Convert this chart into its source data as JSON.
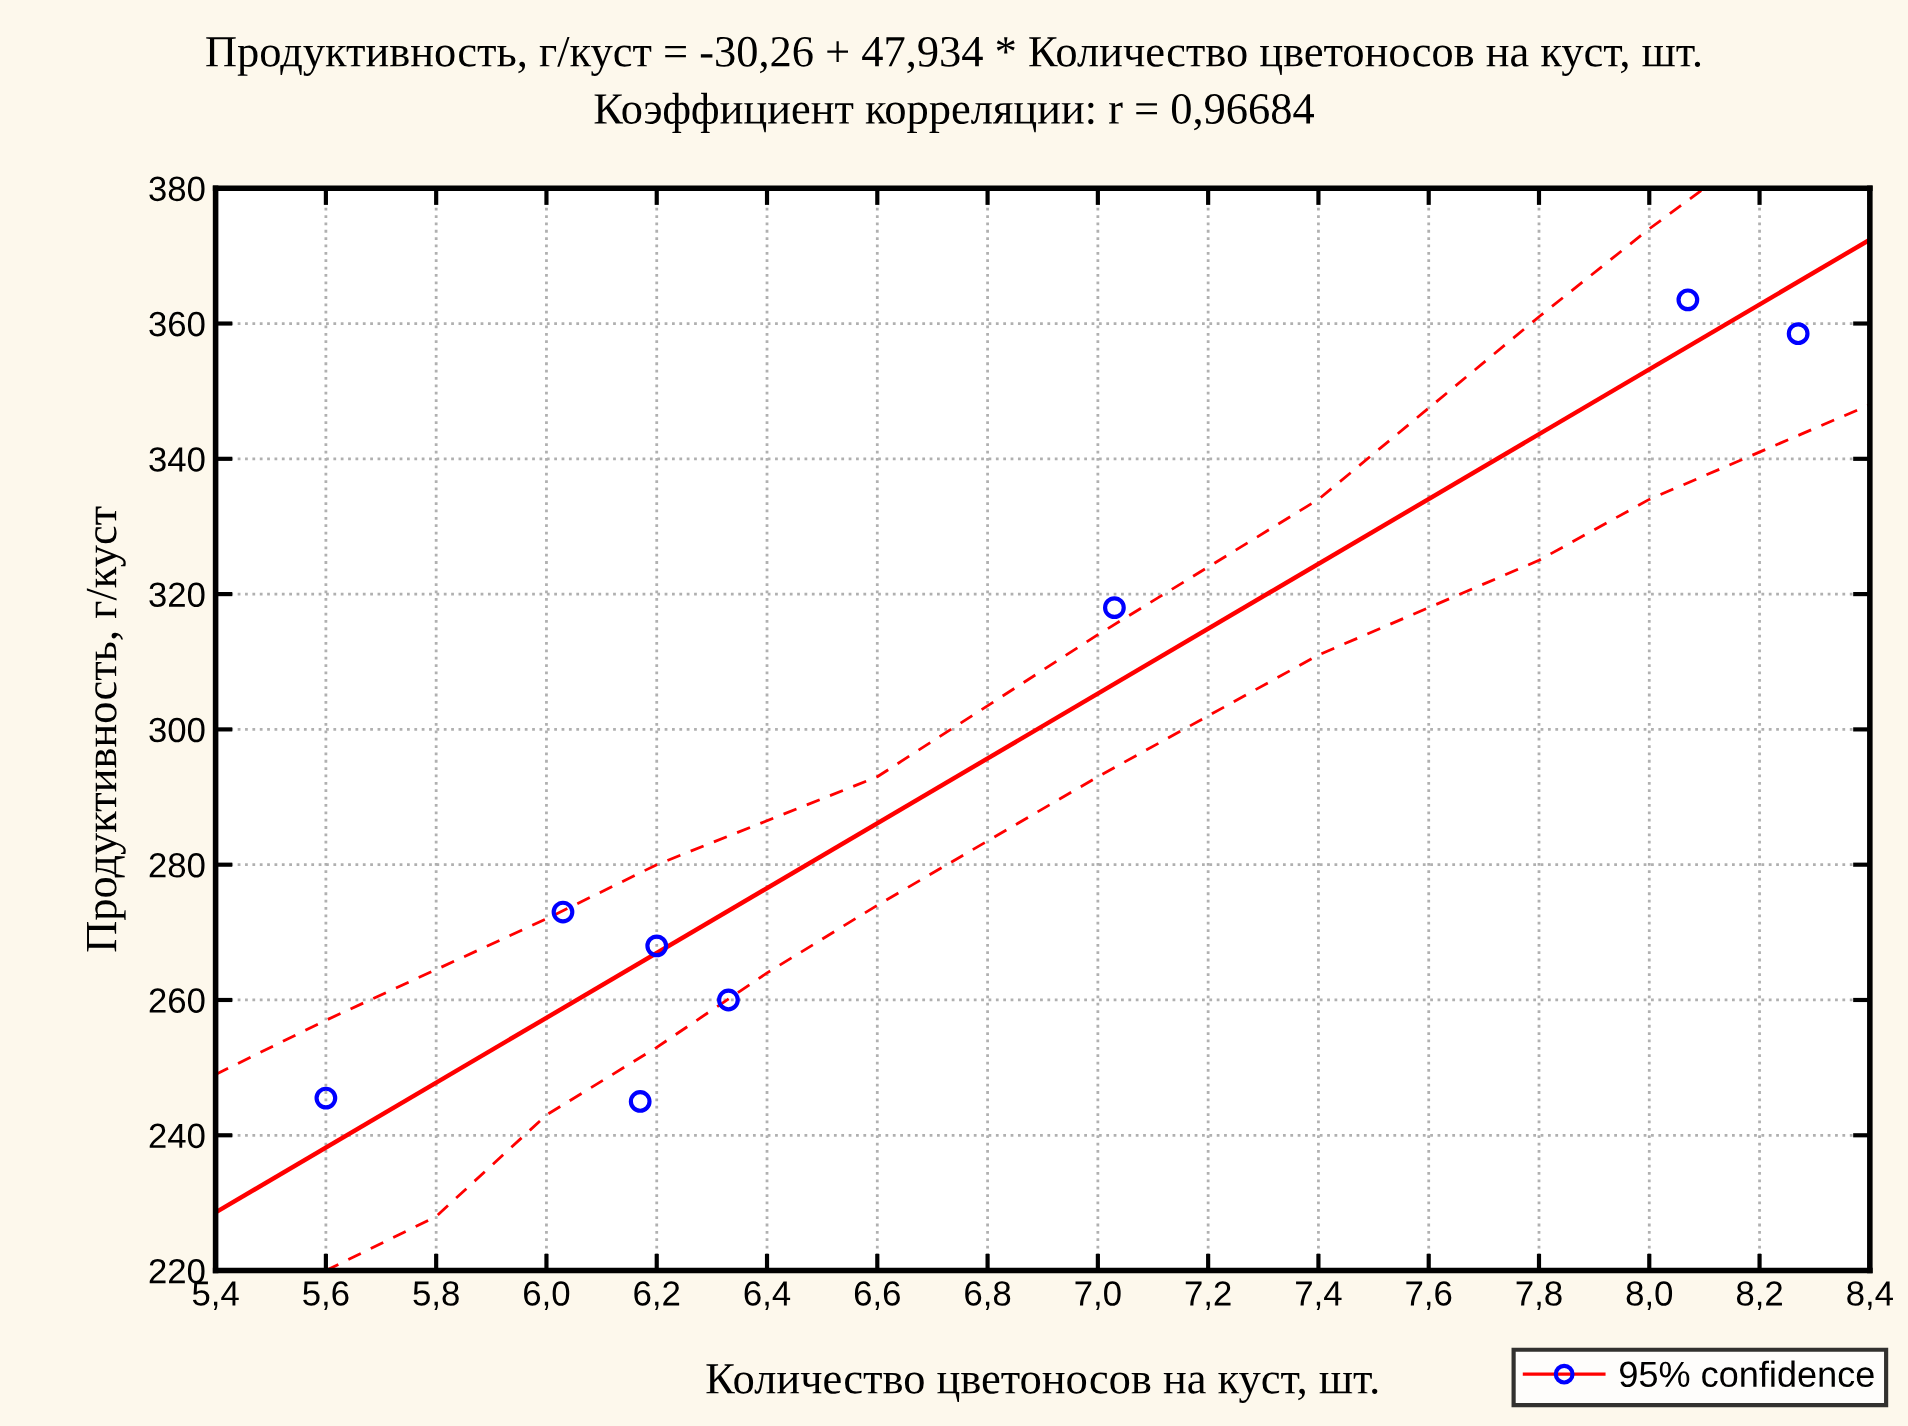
{
  "chart_data": {
    "type": "scatter",
    "title": "Продуктивность, г/куст = -30,26 + 47,934 * Количество цветоносов на куст, шт.",
    "subtitle": "Коэффициент корреляции: r = 0,96684",
    "xlabel": "Количество цветоносов на куст, шт.",
    "ylabel": "Продуктивность, г/куст",
    "x": [
      5.6,
      6.03,
      6.17,
      6.2,
      6.33,
      7.03,
      8.07,
      8.27
    ],
    "series": [
      {
        "name": "95% confidence",
        "color": "#0000ff",
        "marker": "circle",
        "values": [
          245.5,
          273,
          245,
          268,
          260,
          318,
          363.5,
          358.5
        ]
      },
      {
        "type": "line",
        "color": "#ff0000",
        "line_style": "solid",
        "x": [
          5.4,
          8.4
        ],
        "values": [
          228.6,
          372.4
        ]
      },
      {
        "type": "line",
        "color": "#ff0000",
        "line_style": "dashed",
        "x": [
          5.4,
          5.6,
          6.0,
          6.2,
          6.6,
          7.0,
          7.4,
          7.8,
          8.0,
          8.1
        ],
        "values": [
          249,
          257,
          272,
          280,
          293,
          314,
          334,
          361,
          374,
          380
        ]
      },
      {
        "type": "line",
        "color": "#ff0000",
        "line_style": "dashed",
        "x": [
          5.6,
          5.8,
          6.0,
          6.2,
          6.4,
          6.6,
          7.0,
          7.4,
          7.8,
          8.0,
          8.4
        ],
        "values": [
          220,
          228,
          243,
          253,
          264,
          274,
          293,
          311,
          325,
          334,
          348
        ]
      }
    ],
    "xlim": [
      5.4,
      8.4
    ],
    "ylim": [
      220,
      380
    ],
    "xticks": [
      {
        "value": 5.4,
        "label": "5,4"
      },
      {
        "value": 5.6,
        "label": "5,6"
      },
      {
        "value": 5.8,
        "label": "5,8"
      },
      {
        "value": 6.0,
        "label": "6,0"
      },
      {
        "value": 6.2,
        "label": "6,2"
      },
      {
        "value": 6.4,
        "label": "6,4"
      },
      {
        "value": 6.6,
        "label": "6,6"
      },
      {
        "value": 6.8,
        "label": "6,8"
      },
      {
        "value": 7.0,
        "label": "7,0"
      },
      {
        "value": 7.2,
        "label": "7,2"
      },
      {
        "value": 7.4,
        "label": "7,4"
      },
      {
        "value": 7.6,
        "label": "7,6"
      },
      {
        "value": 7.8,
        "label": "7,8"
      },
      {
        "value": 8.0,
        "label": "8,0"
      },
      {
        "value": 8.2,
        "label": "8,2"
      },
      {
        "value": 8.4,
        "label": "8,4"
      }
    ],
    "yticks": [
      220,
      240,
      260,
      280,
      300,
      320,
      340,
      360,
      380
    ],
    "grid": true,
    "legend": "bottom right"
  }
}
